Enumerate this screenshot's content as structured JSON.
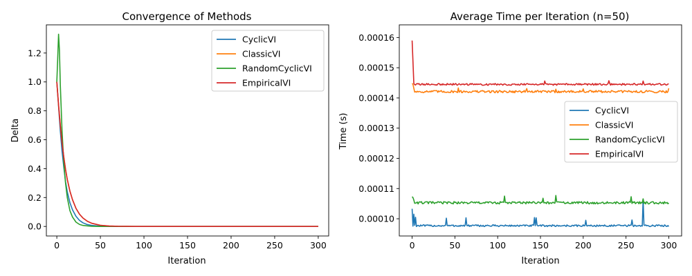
{
  "chart_data": [
    {
      "type": "line",
      "title": "Convergence of Methods",
      "xlabel": "Iteration",
      "ylabel": "Delta",
      "xlim": [
        -12,
        312
      ],
      "ylim": [
        -0.066,
        1.395
      ],
      "xticks": [
        0,
        50,
        100,
        150,
        200,
        250,
        300
      ],
      "yticks": [
        0.0,
        0.2,
        0.4,
        0.6,
        0.8,
        1.0,
        1.2
      ],
      "ytick_decimals": 1,
      "grid": false,
      "legend_position": "top-right",
      "series": [
        {
          "name": "CyclicVI",
          "color": "#1f77b4",
          "points": [
            [
              0,
              1.0
            ],
            [
              2,
              0.83
            ],
            [
              4,
              0.66
            ],
            [
              6,
              0.52
            ],
            [
              8,
              0.41
            ],
            [
              10,
              0.31
            ],
            [
              12,
              0.24
            ],
            [
              15,
              0.165
            ],
            [
              18,
              0.115
            ],
            [
              22,
              0.07
            ],
            [
              26,
              0.042
            ],
            [
              30,
              0.025
            ],
            [
              35,
              0.013
            ],
            [
              40,
              0.007
            ],
            [
              50,
              0.002
            ],
            [
              60,
              0.0005
            ],
            [
              80,
              0.0
            ],
            [
              300,
              0.0
            ]
          ]
        },
        {
          "name": "ClassicVI",
          "color": "#ff7f0e",
          "points": [
            [
              0,
              1.0
            ],
            [
              2,
              0.84
            ],
            [
              4,
              0.7
            ],
            [
              6,
              0.58
            ],
            [
              8,
              0.48
            ],
            [
              10,
              0.395
            ],
            [
              12,
              0.325
            ],
            [
              15,
              0.245
            ],
            [
              18,
              0.185
            ],
            [
              22,
              0.125
            ],
            [
              26,
              0.085
            ],
            [
              30,
              0.058
            ],
            [
              35,
              0.036
            ],
            [
              40,
              0.022
            ],
            [
              50,
              0.008
            ],
            [
              60,
              0.003
            ],
            [
              70,
              0.001
            ],
            [
              90,
              0.0
            ],
            [
              300,
              0.0
            ]
          ]
        },
        {
          "name": "RandomCyclicVI",
          "color": "#2ca02c",
          "points": [
            [
              0,
              1.0
            ],
            [
              1,
              1.16
            ],
            [
              2,
              1.33
            ],
            [
              3,
              1.22
            ],
            [
              4,
              0.98
            ],
            [
              6,
              0.66
            ],
            [
              8,
              0.44
            ],
            [
              10,
              0.3
            ],
            [
              12,
              0.2
            ],
            [
              15,
              0.11
            ],
            [
              18,
              0.065
            ],
            [
              22,
              0.03
            ],
            [
              26,
              0.014
            ],
            [
              30,
              0.007
            ],
            [
              40,
              0.001
            ],
            [
              50,
              0.0
            ],
            [
              300,
              0.0
            ]
          ]
        },
        {
          "name": "EmpiricalVI",
          "color": "#d62728",
          "points": [
            [
              0,
              1.0
            ],
            [
              2,
              0.84
            ],
            [
              4,
              0.7
            ],
            [
              6,
              0.58
            ],
            [
              8,
              0.48
            ],
            [
              10,
              0.395
            ],
            [
              12,
              0.325
            ],
            [
              15,
              0.245
            ],
            [
              18,
              0.185
            ],
            [
              22,
              0.125
            ],
            [
              26,
              0.085
            ],
            [
              30,
              0.058
            ],
            [
              35,
              0.036
            ],
            [
              40,
              0.022
            ],
            [
              50,
              0.008
            ],
            [
              60,
              0.003
            ],
            [
              70,
              0.001
            ],
            [
              90,
              0.0
            ],
            [
              300,
              0.0
            ]
          ]
        }
      ]
    },
    {
      "type": "line",
      "title": "Average Time per Iteration (n=50)",
      "xlabel": "Iteration",
      "ylabel": "Time (s)",
      "xlim": [
        -15,
        315
      ],
      "ylim": [
        9.43e-05,
        0.0001642
      ],
      "xticks": [
        0,
        50,
        100,
        150,
        200,
        250,
        300
      ],
      "yticks": [
        0.0001,
        0.00011,
        0.00012,
        0.00013,
        0.00014,
        0.00015,
        0.00016
      ],
      "ytick_labels": [
        "0.00010",
        "0.00011",
        "0.00012",
        "0.00013",
        "0.00014",
        "0.00015",
        "0.00016"
      ],
      "grid": false,
      "legend_position": "center-right",
      "series": [
        {
          "name": "CyclicVI",
          "color": "#1f77b4",
          "base": 9.77e-05,
          "noise": 3e-07,
          "start": 0.0001033,
          "spikes": [
            [
              2,
              0.0001015
            ],
            [
              4,
              0.0001005
            ],
            [
              40,
              0.0001002
            ],
            [
              63,
              0.0001003
            ],
            [
              143,
              0.0001004
            ],
            [
              145,
              0.0001003
            ],
            [
              203,
              9.95e-05
            ],
            [
              257,
              9.96e-05
            ],
            [
              270,
              0.0001065
            ]
          ]
        },
        {
          "name": "ClassicVI",
          "color": "#ff7f0e",
          "base": 0.0001421,
          "noise": 4e-07,
          "start": 0.0001448,
          "spikes": [
            [
              1,
              0.0001445
            ],
            [
              2,
              0.0001432
            ],
            [
              54,
              0.0001433
            ],
            [
              134,
              0.0001431
            ],
            [
              168,
              0.0001429
            ],
            [
              200,
              0.000143
            ],
            [
              300,
              0.0001432
            ]
          ]
        },
        {
          "name": "RandomCyclicVI",
          "color": "#2ca02c",
          "base": 0.0001053,
          "noise": 4e-07,
          "start": 0.0001073,
          "spikes": [
            [
              1,
              0.000107
            ],
            [
              2,
              0.0001062
            ],
            [
              108,
              0.0001075
            ],
            [
              168,
              0.0001077
            ],
            [
              153,
              0.0001068
            ],
            [
              256,
              0.0001073
            ],
            [
              270,
              0.0001066
            ]
          ]
        },
        {
          "name": "EmpiricalVI",
          "color": "#d62728",
          "base": 0.0001445,
          "noise": 3e-07,
          "start": 0.000159,
          "spikes": [
            [
              1,
              0.000152
            ],
            [
              2,
              0.0001448
            ],
            [
              155,
              0.0001456
            ],
            [
              230,
              0.0001457
            ],
            [
              270,
              0.0001456
            ]
          ]
        }
      ]
    }
  ]
}
